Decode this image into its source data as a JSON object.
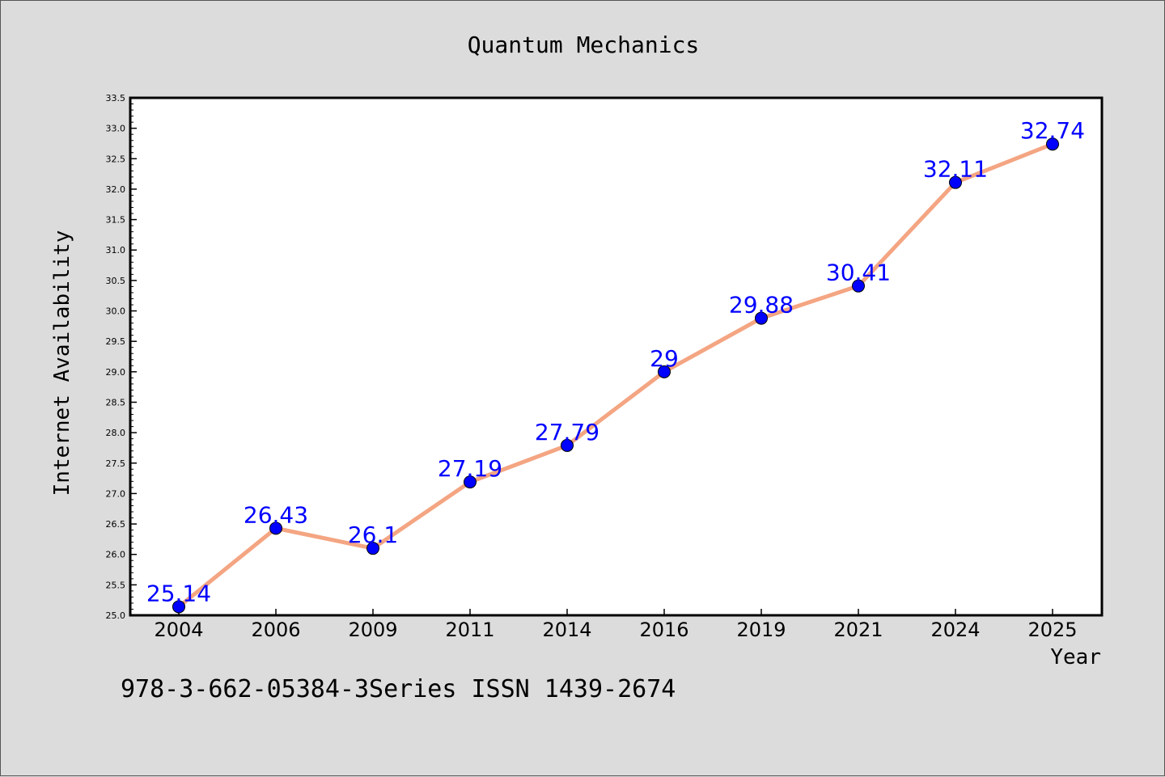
{
  "caption": "978-3-662-05384-3Series ISSN 1439-2674",
  "colors": {
    "background": "#dcdcdc",
    "plot_area": "#ffffff",
    "line": "#f4a582",
    "marker": "#0000ff",
    "data_label": "#0000ff"
  },
  "chart_data": {
    "type": "line",
    "title": "Quantum Mechanics",
    "xlabel": "Year",
    "ylabel": "Internet Availability",
    "categories": [
      "2004",
      "2006",
      "2009",
      "2011",
      "2014",
      "2016",
      "2019",
      "2021",
      "2024",
      "2025"
    ],
    "series": [
      {
        "values": [
          25.14,
          26.43,
          26.1,
          27.19,
          27.79,
          29,
          29.88,
          30.41,
          32.11,
          32.74
        ],
        "labels": [
          "25.14",
          "26.43",
          "26.1",
          "27.19",
          "27.79",
          "29",
          "29.88",
          "30.41",
          "32.11",
          "32.74"
        ]
      }
    ],
    "ylim": [
      25.0,
      33.5
    ],
    "yticks": [
      "25.0",
      "25.5",
      "26.0",
      "26.5",
      "27.0",
      "27.5",
      "28.0",
      "28.5",
      "29.0",
      "29.5",
      "30.0",
      "30.5",
      "31.0",
      "31.5",
      "32.0",
      "32.5",
      "33.0",
      "33.5"
    ],
    "grid": false,
    "legend": "none"
  }
}
